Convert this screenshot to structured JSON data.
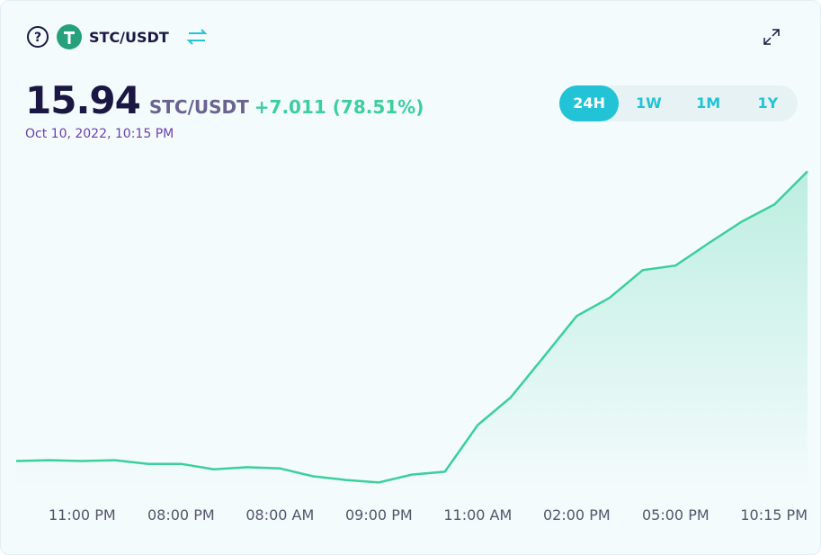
{
  "header": {
    "pair": "STC/USDT"
  },
  "price": {
    "value": "15.94",
    "pair": "STC/USDT",
    "change": "+7.011 (78.51%)",
    "date": "Oct 10, 2022, 10:15 PM"
  },
  "ranges": [
    "24H",
    "1W",
    "1M",
    "1Y"
  ],
  "chart_data": {
    "type": "line",
    "categories": [
      null,
      null,
      "11:00 PM",
      null,
      null,
      "08:00 PM",
      null,
      null,
      "08:00 AM",
      null,
      null,
      "09:00 PM",
      null,
      null,
      "11:00 AM",
      null,
      null,
      "02:00 PM",
      null,
      null,
      "05:00 PM",
      null,
      null,
      "10:15 PM",
      null
    ],
    "values": [
      8.93,
      8.95,
      8.93,
      8.95,
      8.86,
      8.86,
      8.73,
      8.78,
      8.75,
      8.56,
      8.47,
      8.41,
      8.6,
      8.67,
      9.8,
      10.47,
      11.45,
      12.44,
      12.88,
      13.55,
      13.66,
      14.2,
      14.72,
      15.14,
      15.94
    ],
    "color": "#3ccf9c",
    "ylim": [
      8.2,
      16.8
    ]
  }
}
